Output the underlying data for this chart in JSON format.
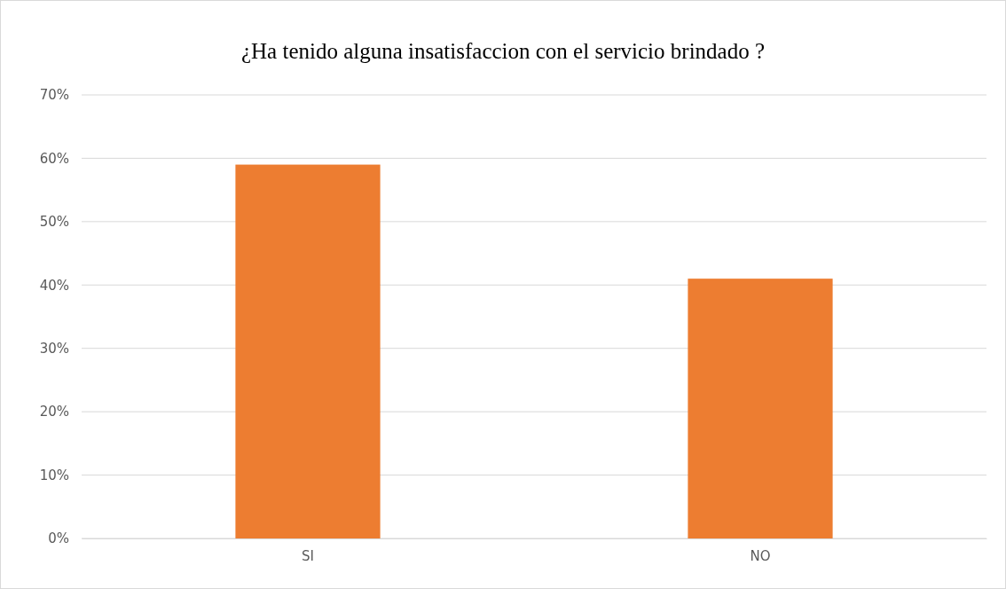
{
  "chart_data": {
    "type": "bar",
    "title": "¿Ha tenido alguna insatisfaccion con el servicio brindado ?",
    "categories": [
      "SI",
      "NO"
    ],
    "values": [
      59,
      41
    ],
    "color": "#ed7d31",
    "ylim": [
      0,
      70
    ],
    "yticks": [
      {
        "value": 0,
        "label": "0%"
      },
      {
        "value": 10,
        "label": "10%"
      },
      {
        "value": 20,
        "label": "20%"
      },
      {
        "value": 30,
        "label": "30%"
      },
      {
        "value": 40,
        "label": "40%"
      },
      {
        "value": 50,
        "label": "50%"
      },
      {
        "value": 60,
        "label": "60%"
      },
      {
        "value": 70,
        "label": "70%"
      }
    ],
    "grid": "y"
  }
}
